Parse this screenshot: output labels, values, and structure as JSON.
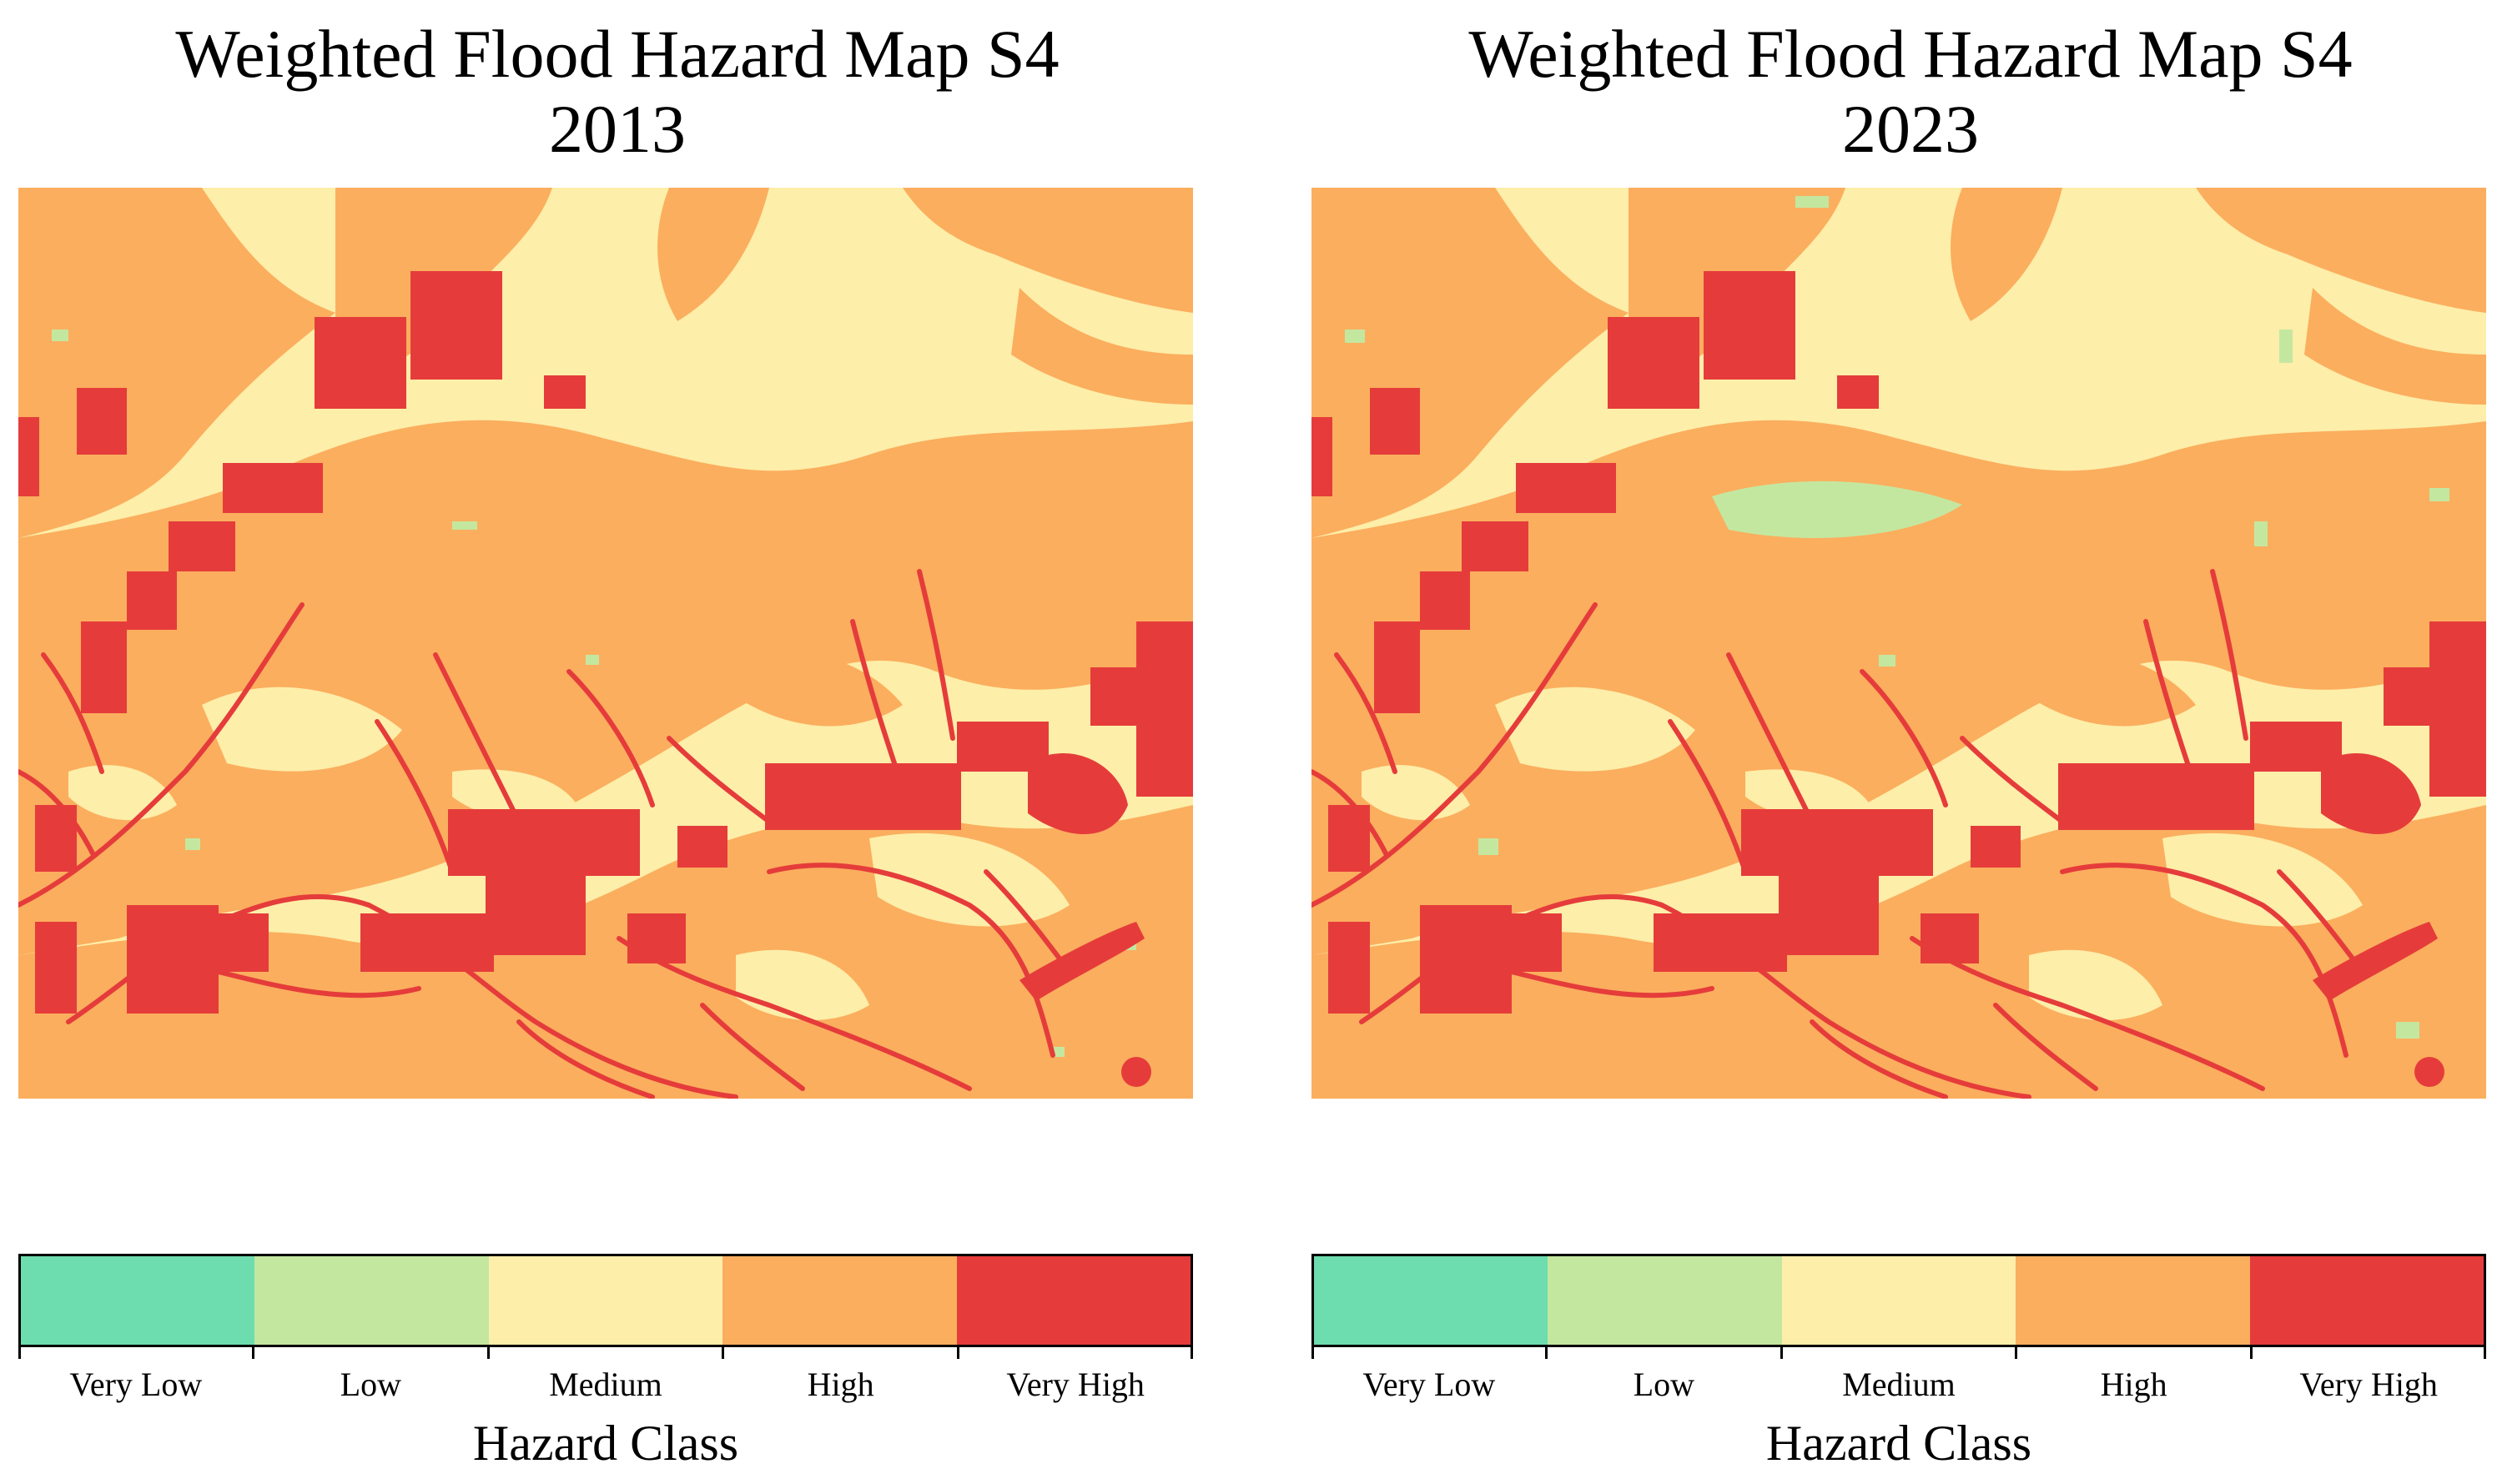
{
  "colors": {
    "very_low": "#6ddcae",
    "low": "#c4e7a0",
    "medium": "#fdeea9",
    "high": "#fbae5e",
    "very_high": "#e53c3b"
  },
  "panels": [
    {
      "title_line1": "Weighted Flood Hazard Map S4",
      "title_line2": "2013"
    },
    {
      "title_line1": "Weighted Flood Hazard Map S4",
      "title_line2": "2023"
    }
  ],
  "legend": {
    "title": "Hazard Class",
    "classes": [
      "Very Low",
      "Low",
      "Medium",
      "High",
      "Very High"
    ]
  }
}
